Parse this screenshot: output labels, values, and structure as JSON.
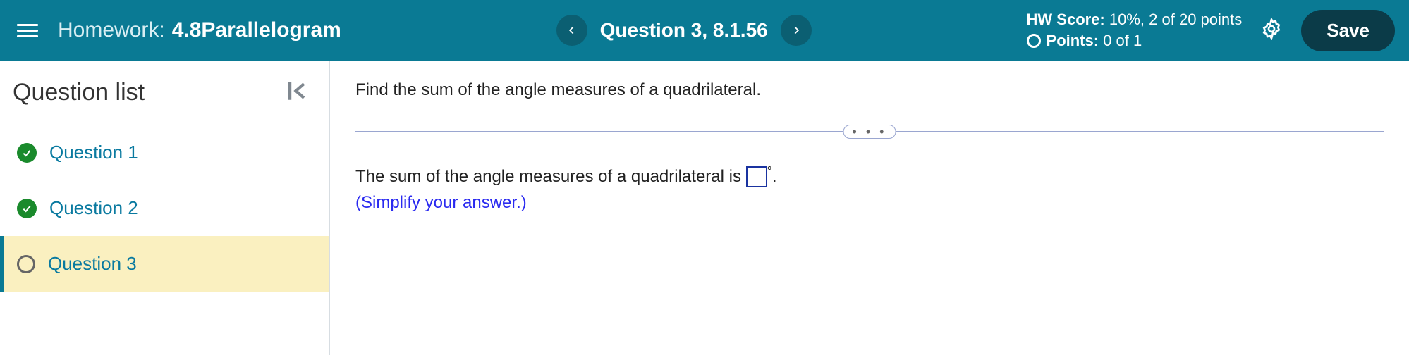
{
  "colors": {
    "header_bg": "#0a7a94",
    "nav_btn_bg": "#0b5f72",
    "save_bg": "#0b3b48",
    "link_blue": "#0a7aa0",
    "check_green": "#1a8a2c",
    "active_bg": "#faf0c0",
    "divider": "#9aa6d0",
    "instruction_blue": "#2a2af0",
    "input_border": "#1a33a0"
  },
  "header": {
    "hw_prefix": "Homework:",
    "hw_title": "4.8Parallelogram",
    "question_label": "Question 3, 8.1.56",
    "score_label": "HW Score:",
    "score_value": "10%, 2 of 20 points",
    "points_label": "Points:",
    "points_value": "0 of 1",
    "save_label": "Save"
  },
  "sidebar": {
    "title": "Question list",
    "items": [
      {
        "label": "Question 1",
        "status": "correct",
        "active": false
      },
      {
        "label": "Question 2",
        "status": "correct",
        "active": false
      },
      {
        "label": "Question 3",
        "status": "open",
        "active": true
      }
    ]
  },
  "content": {
    "prompt": "Find the sum of the angle measures of a quadrilateral.",
    "answer_prefix": "The sum of the angle measures of a quadrilateral is ",
    "answer_value": "",
    "answer_suffix_degree": "°",
    "answer_period": ".",
    "instruction": "(Simplify your answer.)",
    "dots": "• • •"
  }
}
